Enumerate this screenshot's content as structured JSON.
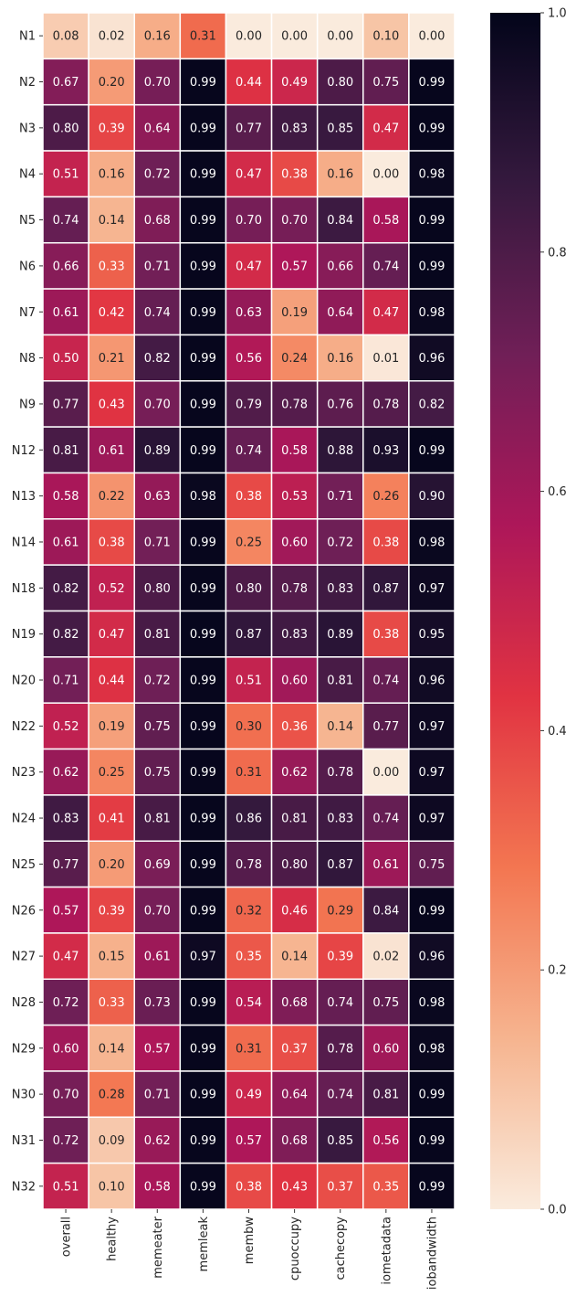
{
  "chart_data": {
    "type": "heatmap",
    "title": "",
    "xlabel": "",
    "ylabel": "",
    "columns": [
      "overall",
      "healthy",
      "memeater",
      "memleak",
      "membw",
      "cpuoccupy",
      "cachecopy",
      "iometadata",
      "iobandwidth"
    ],
    "rows": [
      "N1",
      "N2",
      "N3",
      "N4",
      "N5",
      "N6",
      "N7",
      "N8",
      "N9",
      "N12",
      "N13",
      "N14",
      "N18",
      "N19",
      "N20",
      "N22",
      "N23",
      "N24",
      "N25",
      "N26",
      "N27",
      "N28",
      "N29",
      "N30",
      "N31",
      "N32"
    ],
    "values": [
      [
        0.08,
        0.02,
        0.16,
        0.31,
        0.0,
        0.0,
        0.0,
        0.1,
        0.0
      ],
      [
        0.67,
        0.2,
        0.7,
        0.99,
        0.44,
        0.49,
        0.8,
        0.75,
        0.99
      ],
      [
        0.8,
        0.39,
        0.64,
        0.99,
        0.77,
        0.83,
        0.85,
        0.47,
        0.99
      ],
      [
        0.51,
        0.16,
        0.72,
        0.99,
        0.47,
        0.38,
        0.16,
        0.0,
        0.98
      ],
      [
        0.74,
        0.14,
        0.68,
        0.99,
        0.7,
        0.7,
        0.84,
        0.58,
        0.99
      ],
      [
        0.66,
        0.33,
        0.71,
        0.99,
        0.47,
        0.57,
        0.66,
        0.74,
        0.99
      ],
      [
        0.61,
        0.42,
        0.74,
        0.99,
        0.63,
        0.19,
        0.64,
        0.47,
        0.98
      ],
      [
        0.5,
        0.21,
        0.82,
        0.99,
        0.56,
        0.24,
        0.16,
        0.01,
        0.96
      ],
      [
        0.77,
        0.43,
        0.7,
        0.99,
        0.79,
        0.78,
        0.76,
        0.78,
        0.82
      ],
      [
        0.81,
        0.61,
        0.89,
        0.99,
        0.74,
        0.58,
        0.88,
        0.93,
        0.99
      ],
      [
        0.58,
        0.22,
        0.63,
        0.98,
        0.38,
        0.53,
        0.71,
        0.26,
        0.9
      ],
      [
        0.61,
        0.38,
        0.71,
        0.99,
        0.25,
        0.6,
        0.72,
        0.38,
        0.98
      ],
      [
        0.82,
        0.52,
        0.8,
        0.99,
        0.8,
        0.78,
        0.83,
        0.87,
        0.97
      ],
      [
        0.82,
        0.47,
        0.81,
        0.99,
        0.87,
        0.83,
        0.89,
        0.38,
        0.95
      ],
      [
        0.71,
        0.44,
        0.72,
        0.99,
        0.51,
        0.6,
        0.81,
        0.74,
        0.96
      ],
      [
        0.52,
        0.19,
        0.75,
        0.99,
        0.3,
        0.36,
        0.14,
        0.77,
        0.97
      ],
      [
        0.62,
        0.25,
        0.75,
        0.99,
        0.31,
        0.62,
        0.78,
        0.0,
        0.97
      ],
      [
        0.83,
        0.41,
        0.81,
        0.99,
        0.86,
        0.81,
        0.83,
        0.74,
        0.97
      ],
      [
        0.77,
        0.2,
        0.69,
        0.99,
        0.78,
        0.8,
        0.87,
        0.61,
        0.75
      ],
      [
        0.57,
        0.39,
        0.7,
        0.99,
        0.32,
        0.46,
        0.29,
        0.84,
        0.99
      ],
      [
        0.47,
        0.15,
        0.61,
        0.97,
        0.35,
        0.14,
        0.39,
        0.02,
        0.96
      ],
      [
        0.72,
        0.33,
        0.73,
        0.99,
        0.54,
        0.68,
        0.74,
        0.75,
        0.98
      ],
      [
        0.6,
        0.14,
        0.57,
        0.99,
        0.31,
        0.37,
        0.78,
        0.6,
        0.98
      ],
      [
        0.7,
        0.28,
        0.71,
        0.99,
        0.49,
        0.64,
        0.74,
        0.81,
        0.99
      ],
      [
        0.72,
        0.09,
        0.62,
        0.99,
        0.57,
        0.68,
        0.85,
        0.56,
        0.99
      ],
      [
        0.51,
        0.1,
        0.58,
        0.99,
        0.38,
        0.43,
        0.37,
        0.35,
        0.99
      ]
    ],
    "colorbar": {
      "range": [
        0,
        1
      ],
      "ticks": [
        "0.0",
        "0.2",
        "0.4",
        "0.6",
        "0.8",
        "1.0"
      ],
      "tick_values": [
        0,
        0.2,
        0.4,
        0.6,
        0.8,
        1.0
      ],
      "colormap": "rocket_r",
      "colormap_stops": [
        "#faebdd",
        "#f6b48f",
        "#f37651",
        "#e13342",
        "#ad1759",
        "#701f57",
        "#35193e",
        "#03051a"
      ]
    },
    "value_format": "2 decimals",
    "grid_line_color": "#ffffff",
    "legend_placement": "right"
  }
}
